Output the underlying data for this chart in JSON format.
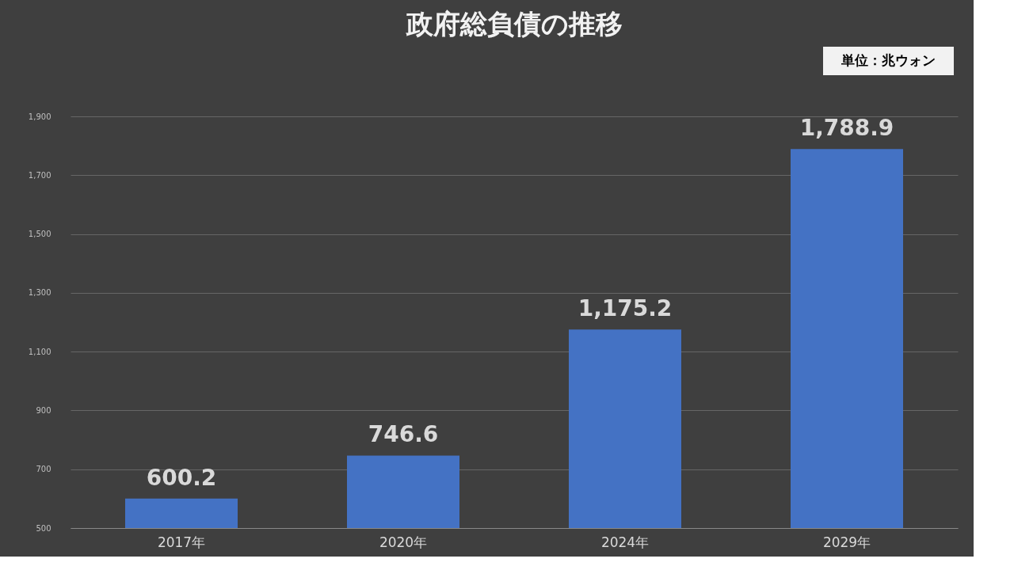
{
  "chart_data": {
    "type": "bar",
    "title": "政府総負債の推移",
    "categories": [
      "2017年",
      "2020年",
      "2024年",
      "2029年"
    ],
    "values": [
      600.2,
      746.6,
      1175.2,
      1788.9
    ],
    "color": "#4472c4",
    "ylim": [
      500,
      1900
    ],
    "yticks": [
      {
        "value": 500,
        "label": "500"
      },
      {
        "value": 700,
        "label": "700"
      },
      {
        "value": 900,
        "label": "900"
      },
      {
        "value": 1100,
        "label": "1,100"
      },
      {
        "value": 1300,
        "label": "1,300"
      },
      {
        "value": 1500,
        "label": "1,500"
      },
      {
        "value": 1700,
        "label": "1,700"
      },
      {
        "value": 1900,
        "label": "1,900"
      }
    ],
    "grid": "y",
    "data_labels": true,
    "value_labels": [
      "600.2",
      "746.6",
      "1,175.2",
      "1,788.9"
    ],
    "annotations": [
      "単位：兆ウォン"
    ]
  }
}
